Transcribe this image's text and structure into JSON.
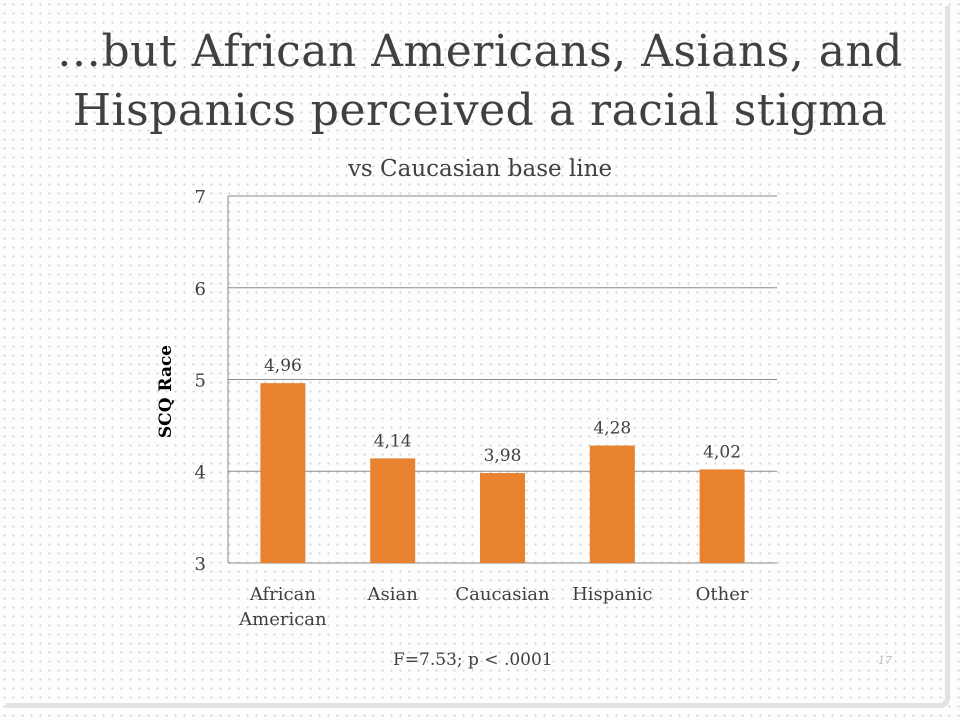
{
  "slide": {
    "title_line1": "…but African Americans, Asians, and",
    "title_line2": "Hispanics perceived a racial stigma",
    "footnote": "F=7.53; p < .0001",
    "slide_number": "17"
  },
  "chart_data": {
    "type": "bar",
    "title": "vs Caucasian base line",
    "xlabel": "",
    "ylabel": "SCQ Race",
    "categories": [
      [
        "African",
        "American"
      ],
      [
        "Asian"
      ],
      [
        "Caucasian"
      ],
      [
        "Hispanic"
      ],
      [
        "Other"
      ]
    ],
    "values": [
      4.96,
      4.14,
      3.98,
      4.28,
      4.02
    ],
    "data_labels": [
      "4,96",
      "4,14",
      "3,98",
      "4,28",
      "4,02"
    ],
    "ylim": [
      3,
      7
    ],
    "yticks": [
      3,
      4,
      5,
      6,
      7
    ],
    "grid": true,
    "bar_color": "#e8822f",
    "legend": false
  }
}
